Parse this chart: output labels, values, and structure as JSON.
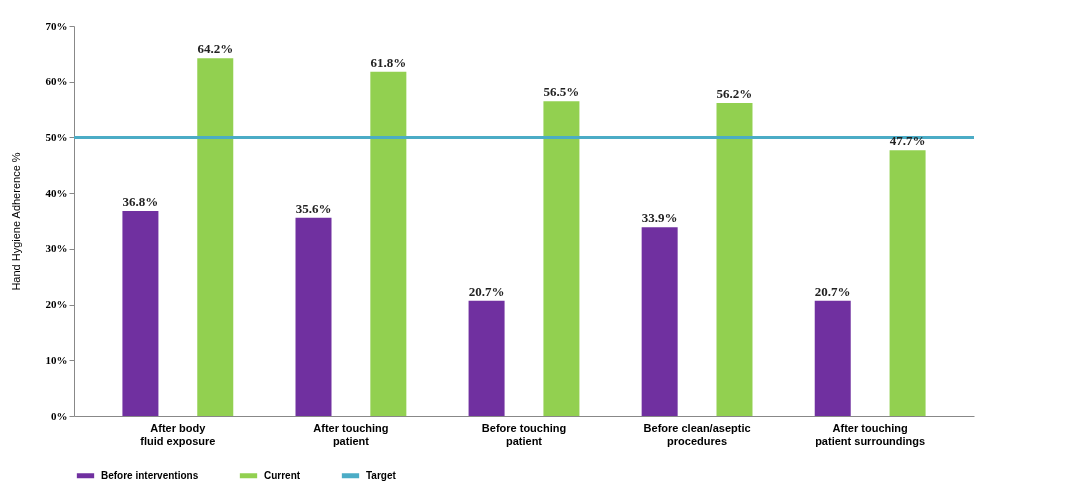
{
  "chart_data": {
    "type": "bar",
    "ylabel": "Hand Hygiene Adherence %",
    "categories": [
      "After body fluid exposure",
      "After touching patient",
      "Before touching patient",
      "Before clean/aseptic procedures",
      "After touching patient surroundings"
    ],
    "series": [
      {
        "name": "Before interventions",
        "color": "#7030a0",
        "values": [
          36.8,
          35.6,
          20.7,
          33.9,
          20.7
        ],
        "value_labels": [
          "36.8%",
          "35.6%",
          "20.7%",
          "33.9%",
          "20.7%"
        ]
      },
      {
        "name": "Current",
        "color": "#92d050",
        "values": [
          64.2,
          61.8,
          56.5,
          56.2,
          47.7
        ],
        "value_labels": [
          "64.2%",
          "61.8%",
          "56.5%",
          "56.2%",
          "47.7%"
        ]
      }
    ],
    "ref_lines": [
      {
        "axis": "y",
        "value": 50,
        "label": "Target",
        "color": "#4bacc6"
      }
    ],
    "ylim": [
      0,
      70
    ],
    "yticks": [
      {
        "value": 0,
        "label": "0%"
      },
      {
        "value": 10,
        "label": "10%"
      },
      {
        "value": 20,
        "label": "20%"
      },
      {
        "value": 30,
        "label": "30%"
      },
      {
        "value": 40,
        "label": "40%"
      },
      {
        "value": 50,
        "label": "50%"
      },
      {
        "value": 60,
        "label": "60%"
      },
      {
        "value": 70,
        "label": "70%"
      }
    ],
    "grid": false,
    "legend": "bottom"
  }
}
